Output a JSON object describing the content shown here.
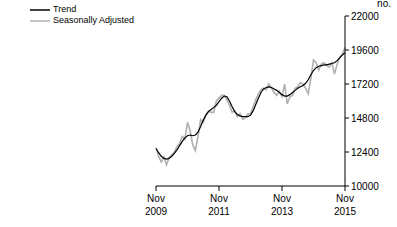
{
  "chart_data": {
    "type": "line",
    "y_label": "no.",
    "categories": [
      "Nov 2009",
      null,
      null,
      null,
      null,
      null,
      null,
      null,
      null,
      null,
      null,
      null,
      null,
      null,
      null,
      null,
      null,
      null,
      null,
      null,
      null,
      null,
      null,
      null,
      "Nov 2011",
      null,
      null,
      null,
      null,
      null,
      null,
      null,
      null,
      null,
      null,
      null,
      null,
      null,
      null,
      null,
      null,
      null,
      null,
      null,
      null,
      null,
      null,
      null,
      "Nov 2013",
      null,
      null,
      null,
      null,
      null,
      null,
      null,
      null,
      null,
      null,
      null,
      null,
      null,
      null,
      null,
      null,
      null,
      null,
      null,
      null,
      null,
      null,
      null,
      "Nov 2015"
    ],
    "series": [
      {
        "name": "Trend",
        "color": "#000000",
        "values": [
          12650,
          12350,
          12100,
          11950,
          11900,
          11950,
          12100,
          12300,
          12550,
          12850,
          13150,
          13400,
          13550,
          13600,
          13550,
          13600,
          13800,
          14200,
          14650,
          15000,
          15250,
          15400,
          15550,
          15700,
          15950,
          16200,
          16350,
          16300,
          16000,
          15600,
          15250,
          15050,
          14950,
          14900,
          14900,
          14900,
          15000,
          15300,
          15750,
          16200,
          16600,
          16850,
          16950,
          17000,
          16950,
          16850,
          16750,
          16600,
          16450,
          16350,
          16350,
          16450,
          16600,
          16750,
          16900,
          17000,
          17100,
          17250,
          17500,
          17850,
          18150,
          18350,
          18450,
          18500,
          18550,
          18550,
          18600,
          18650,
          18700,
          18850,
          19050,
          19250,
          19400
        ]
      },
      {
        "name": "Seasonally Adjusted",
        "color": "#b0b0b0",
        "values": [
          12700,
          12100,
          11700,
          12050,
          11500,
          12000,
          12200,
          12400,
          12800,
          13000,
          13500,
          13300,
          14500,
          13900,
          12900,
          12500,
          13500,
          14700,
          14500,
          15000,
          15300,
          15200,
          15200,
          16000,
          16200,
          16400,
          16400,
          16100,
          15700,
          15200,
          15300,
          14900,
          15100,
          14700,
          14800,
          15100,
          15100,
          15600,
          16100,
          16500,
          16800,
          16900,
          16800,
          17200,
          16900,
          16600,
          16400,
          16700,
          16300,
          17200,
          15800,
          16300,
          16400,
          16900,
          17000,
          17300,
          17200,
          16900,
          16500,
          17600,
          18900,
          18700,
          18200,
          18600,
          18700,
          18500,
          18400,
          18700,
          17900,
          18600,
          19100,
          19300,
          19800
        ]
      }
    ],
    "ylim": [
      10000,
      22000
    ],
    "yticks": [
      10000,
      12400,
      14800,
      17200,
      19600,
      22000
    ],
    "legend": "top-left"
  }
}
